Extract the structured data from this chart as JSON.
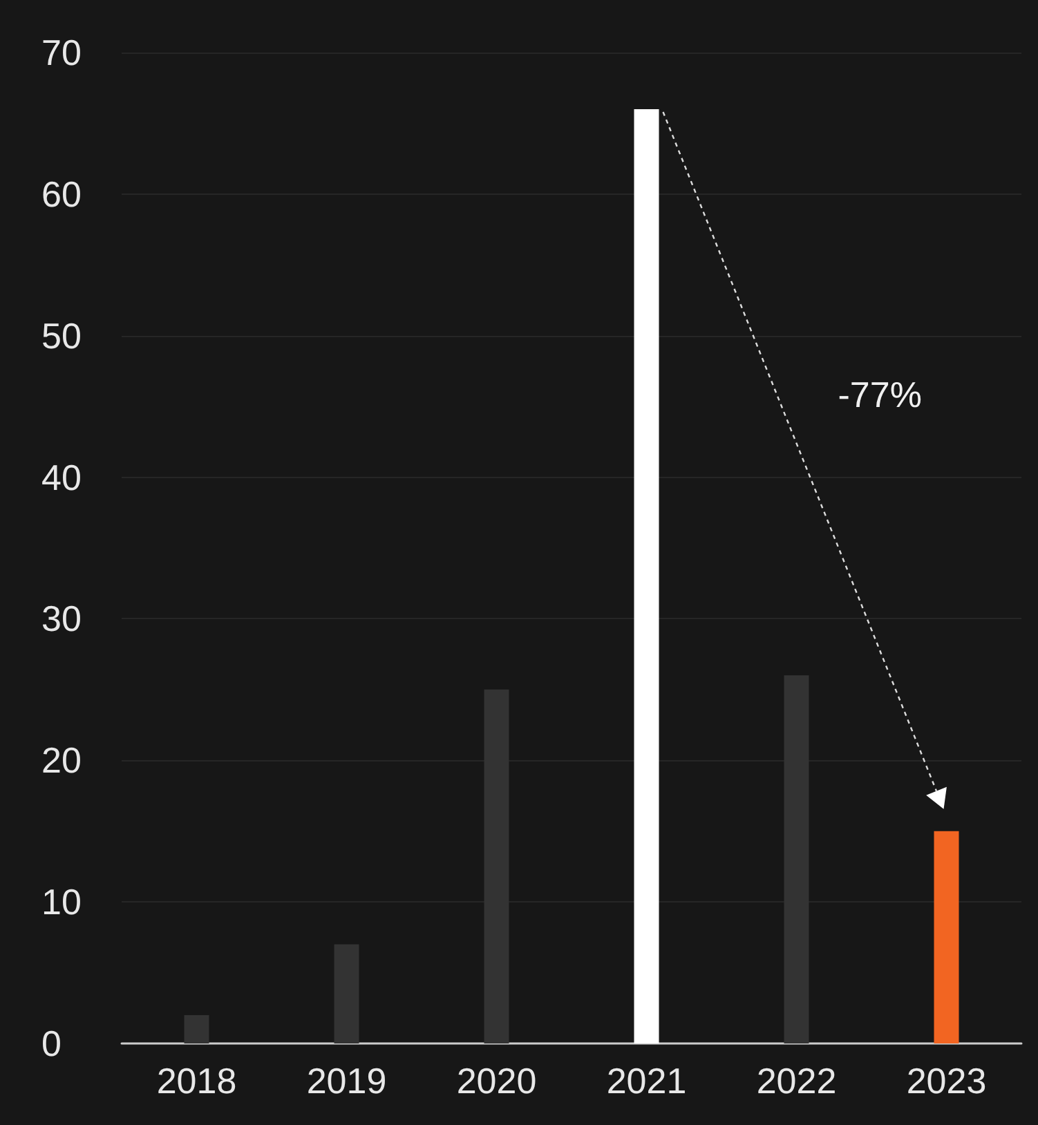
{
  "chart_data": {
    "type": "bar",
    "categories": [
      "2018",
      "2019",
      "2020",
      "2021",
      "2022",
      "2023"
    ],
    "values": [
      2,
      7,
      25,
      66,
      26,
      15
    ],
    "colors": [
      "#333333",
      "#333333",
      "#333333",
      "#ffffff",
      "#333333",
      "#f26522"
    ],
    "ylim": [
      0,
      70
    ],
    "yticks": [
      0,
      10,
      20,
      30,
      40,
      50,
      60,
      70
    ],
    "grid": "y",
    "annotations": [
      "-77%"
    ]
  }
}
